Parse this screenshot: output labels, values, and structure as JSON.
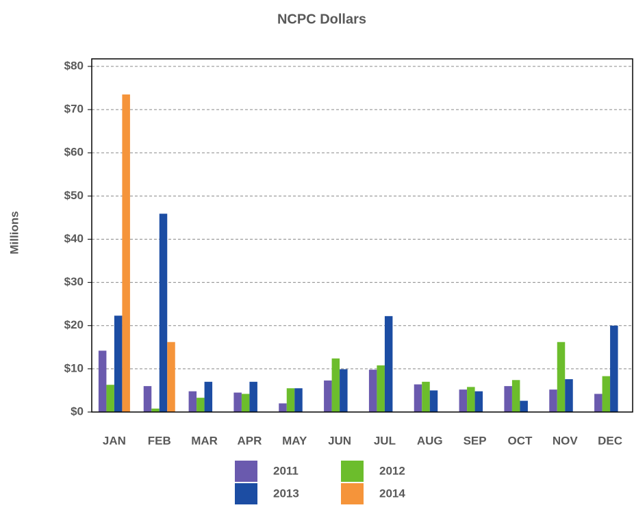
{
  "chart_data": {
    "type": "bar",
    "title": "NCPC Dollars",
    "y_label": "Millions",
    "categories": [
      "JAN",
      "FEB",
      "MAR",
      "APR",
      "MAY",
      "JUN",
      "JUL",
      "AUG",
      "SEP",
      "OCT",
      "NOV",
      "DEC"
    ],
    "series": [
      {
        "name": "2011",
        "color": "#6a5aae",
        "values": [
          14.2,
          6,
          4.8,
          4.5,
          2,
          7.3,
          9.8,
          6.4,
          5.2,
          6,
          5.2,
          4.2
        ]
      },
      {
        "name": "2012",
        "color": "#6cbd2c",
        "values": [
          6.3,
          0.8,
          3.3,
          4.2,
          5.5,
          12.4,
          10.8,
          7,
          5.8,
          7.4,
          16.2,
          8.3
        ]
      },
      {
        "name": "2013",
        "color": "#1c4da3",
        "values": [
          22.3,
          45.9,
          7,
          7,
          5.5,
          9.9,
          22.2,
          5,
          4.8,
          2.6,
          7.6,
          20
        ]
      },
      {
        "name": "2014",
        "color": "#f5943a",
        "values": [
          73.5,
          16.2,
          null,
          null,
          null,
          null,
          null,
          null,
          null,
          null,
          null,
          null
        ]
      }
    ],
    "ylim": [
      0,
      80
    ],
    "yticks": [
      {
        "value": 0,
        "label": "$0"
      },
      {
        "value": 10,
        "label": "$10"
      },
      {
        "value": 20,
        "label": "$20"
      },
      {
        "value": 30,
        "label": "$30"
      },
      {
        "value": 40,
        "label": "$40"
      },
      {
        "value": 50,
        "label": "$50"
      },
      {
        "value": 60,
        "label": "$60"
      },
      {
        "value": 70,
        "label": "$70"
      },
      {
        "value": 80,
        "label": "$80"
      }
    ],
    "grid": true
  }
}
